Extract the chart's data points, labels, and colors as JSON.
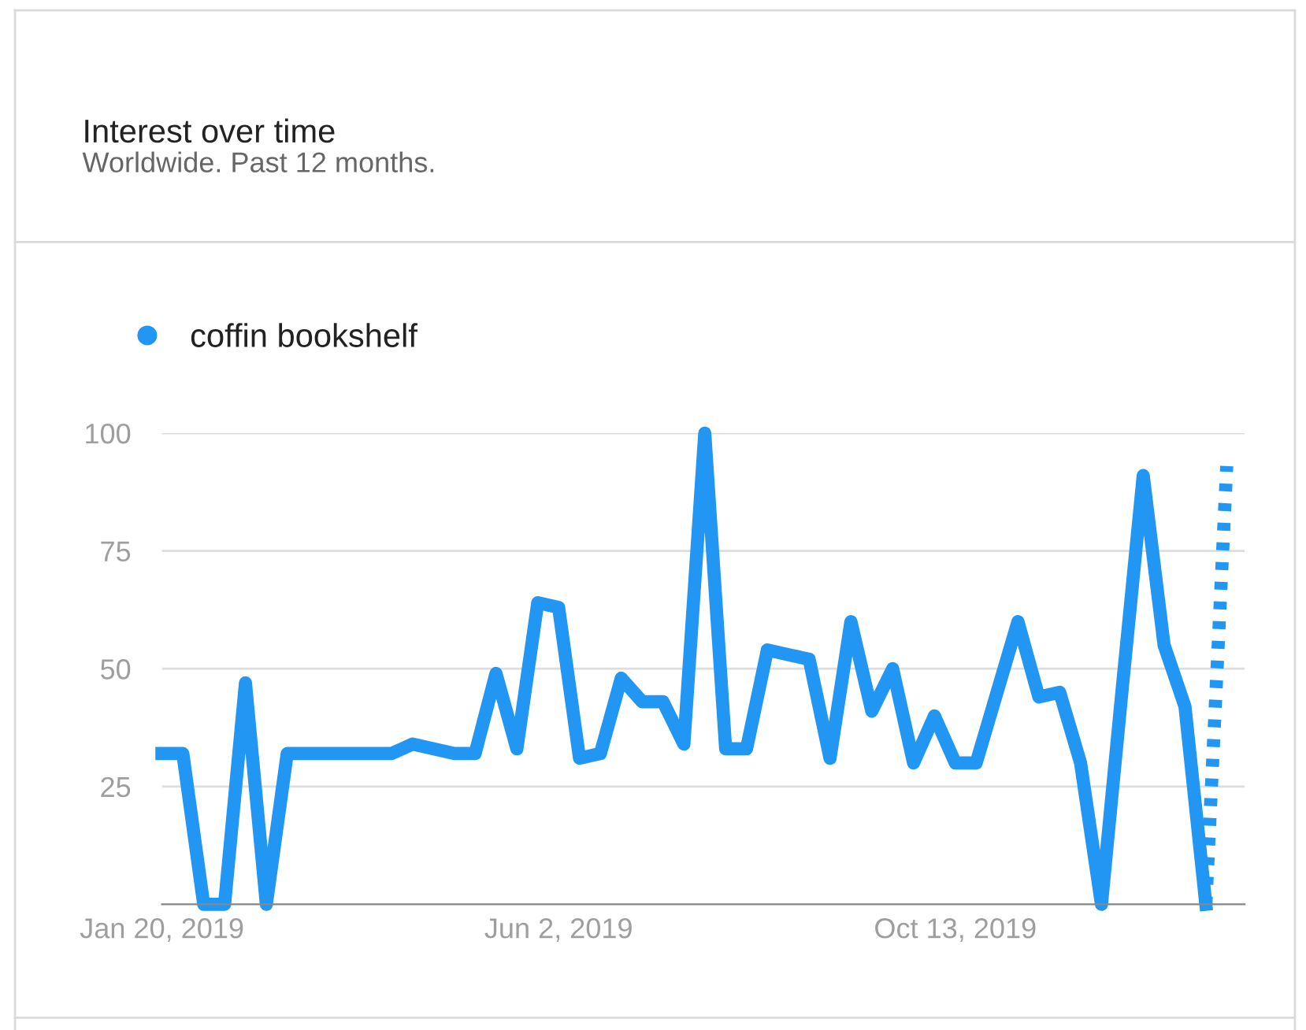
{
  "chart_data": {
    "type": "line",
    "title": "Interest over time",
    "subtitle": "Worldwide. Past 12 months.",
    "x": [
      "2019-01-20",
      "2019-01-27",
      "2019-02-03",
      "2019-02-10",
      "2019-02-17",
      "2019-02-24",
      "2019-03-03",
      "2019-03-10",
      "2019-03-17",
      "2019-03-24",
      "2019-03-31",
      "2019-04-07",
      "2019-04-14",
      "2019-04-21",
      "2019-04-28",
      "2019-05-05",
      "2019-05-12",
      "2019-05-19",
      "2019-05-26",
      "2019-06-02",
      "2019-06-09",
      "2019-06-16",
      "2019-06-23",
      "2019-06-30",
      "2019-07-07",
      "2019-07-14",
      "2019-07-21",
      "2019-07-28",
      "2019-08-04",
      "2019-08-11",
      "2019-08-18",
      "2019-08-25",
      "2019-09-01",
      "2019-09-08",
      "2019-09-15",
      "2019-09-22",
      "2019-09-29",
      "2019-10-06",
      "2019-10-13",
      "2019-10-20",
      "2019-10-27",
      "2019-11-03",
      "2019-11-10",
      "2019-11-17",
      "2019-11-24",
      "2019-12-01",
      "2019-12-08",
      "2019-12-15",
      "2019-12-22",
      "2019-12-29",
      "2020-01-05"
    ],
    "series": [
      {
        "name": "coffin bookshelf",
        "color": "#2196f3",
        "line_style": "solid",
        "values": [
          32,
          32,
          0,
          0,
          47,
          0,
          32,
          32,
          32,
          32,
          32,
          32,
          34,
          33,
          32,
          32,
          49,
          33,
          64,
          63,
          31,
          32,
          48,
          43,
          43,
          34,
          100,
          33,
          33,
          54,
          53,
          52,
          31,
          60,
          41,
          50,
          30,
          40,
          30,
          30,
          45,
          60,
          44,
          45,
          30,
          0,
          46,
          91,
          55,
          42,
          0
        ]
      },
      {
        "color": "#2196f3",
        "line_style": "dotted",
        "x": [
          "2020-01-05",
          "2020-01-12"
        ],
        "values": [
          0,
          93
        ]
      }
    ],
    "xlim": [
      "2019-01-20",
      "2020-01-18"
    ],
    "xticks": [
      {
        "value": "2019-01-20",
        "label": "Jan 20, 2019"
      },
      {
        "value": "2019-06-02",
        "label": "Jun 2, 2019"
      },
      {
        "value": "2019-10-13",
        "label": "Oct 13, 2019"
      }
    ],
    "ylim": [
      0,
      100
    ],
    "yticks": [
      {
        "value": 0,
        "label": null
      },
      25,
      50,
      75,
      100
    ],
    "grid": "y",
    "legend": "top left",
    "marker": "none"
  }
}
